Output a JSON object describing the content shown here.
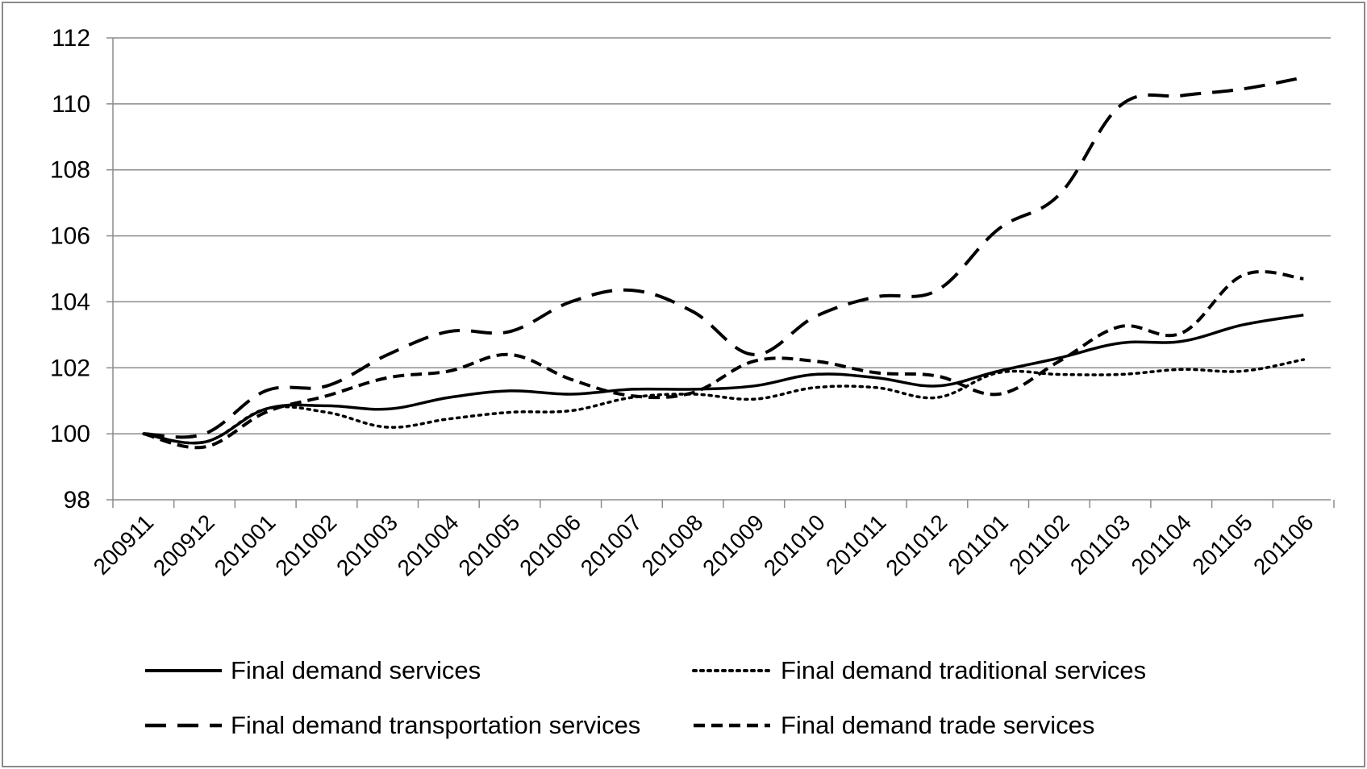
{
  "chart_data": {
    "type": "line",
    "title": "",
    "xlabel": "",
    "ylabel": "",
    "ylim": [
      98,
      112
    ],
    "yticks": [
      98,
      100,
      102,
      104,
      106,
      108,
      110,
      112
    ],
    "categories": [
      "200911",
      "200912",
      "201001",
      "201002",
      "201003",
      "201004",
      "201005",
      "201006",
      "201007",
      "201008",
      "201009",
      "201010",
      "201011",
      "201012",
      "201101",
      "201102",
      "201103",
      "201104",
      "201105",
      "201106"
    ],
    "grid": "horizontal",
    "legend_position": "bottom",
    "series": [
      {
        "name": "Final demand services",
        "style": "solid",
        "color": "#000000",
        "values": [
          100.0,
          99.75,
          100.75,
          100.85,
          100.75,
          101.1,
          101.3,
          101.2,
          101.35,
          101.35,
          101.45,
          101.8,
          101.7,
          101.45,
          101.9,
          102.3,
          102.75,
          102.8,
          103.3,
          103.6
        ]
      },
      {
        "name": "Final demand traditional services",
        "style": "dotted",
        "color": "#000000",
        "values": [
          100.0,
          99.75,
          100.75,
          100.65,
          100.2,
          100.45,
          100.65,
          100.7,
          101.1,
          101.2,
          101.05,
          101.4,
          101.4,
          101.1,
          101.85,
          101.8,
          101.8,
          101.95,
          101.9,
          102.25
        ]
      },
      {
        "name": "Final demand transportation services",
        "style": "long-dash",
        "color": "#000000",
        "values": [
          100.0,
          100.0,
          101.3,
          101.45,
          102.4,
          103.1,
          103.1,
          104.0,
          104.35,
          103.7,
          102.4,
          103.55,
          104.15,
          104.35,
          106.2,
          107.25,
          109.95,
          110.25,
          110.45,
          110.8
        ]
      },
      {
        "name": "Final demand trade services",
        "style": "dash",
        "color": "#000000",
        "values": [
          100.0,
          99.6,
          100.65,
          101.15,
          101.7,
          101.9,
          102.4,
          101.65,
          101.15,
          101.25,
          102.2,
          102.2,
          101.85,
          101.75,
          101.2,
          102.2,
          103.25,
          103.05,
          104.8,
          104.7
        ]
      }
    ]
  }
}
